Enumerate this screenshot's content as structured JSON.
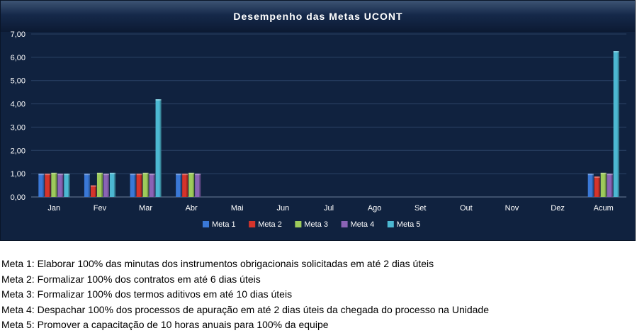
{
  "chart_data": {
    "type": "bar",
    "title": "Desempenho das Metas UCONT",
    "xlabel": "",
    "ylabel": "",
    "categories": [
      "Jan",
      "Fev",
      "Mar",
      "Abr",
      "Mai",
      "Jun",
      "Jul",
      "Ago",
      "Set",
      "Out",
      "Nov",
      "Dez",
      "Acum"
    ],
    "series": [
      {
        "name": "Meta 1",
        "color": "#3A78D6",
        "values": [
          1.0,
          1.0,
          1.0,
          1.0,
          null,
          null,
          null,
          null,
          null,
          null,
          null,
          null,
          1.0
        ]
      },
      {
        "name": "Meta 2",
        "color": "#D5342B",
        "values": [
          1.0,
          0.5,
          1.0,
          1.0,
          null,
          null,
          null,
          null,
          null,
          null,
          null,
          null,
          0.88
        ]
      },
      {
        "name": "Meta 3",
        "color": "#9DCB5B",
        "values": [
          1.04,
          1.04,
          1.04,
          1.04,
          null,
          null,
          null,
          null,
          null,
          null,
          null,
          null,
          1.04
        ]
      },
      {
        "name": "Meta 4",
        "color": "#8A63B5",
        "values": [
          1.0,
          1.0,
          1.0,
          1.0,
          null,
          null,
          null,
          null,
          null,
          null,
          null,
          null,
          1.0
        ]
      },
      {
        "name": "Meta 5",
        "color": "#4CB8D2",
        "values": [
          1.0,
          1.04,
          4.2,
          null,
          null,
          null,
          null,
          null,
          null,
          null,
          null,
          null,
          6.27
        ]
      }
    ],
    "ylim": [
      0,
      7
    ],
    "ytick_values": [
      0,
      1,
      2,
      3,
      4,
      5,
      6,
      7
    ],
    "ytick_labels": [
      "0,00",
      "1,00",
      "2,00",
      "3,00",
      "4,00",
      "5,00",
      "6,00",
      "7,00"
    ],
    "grid": true,
    "legend_position": "bottom",
    "background_color": "#10223F"
  },
  "notes": [
    "Meta 1: Elaborar 100% das minutas dos instrumentos obrigacionais solicitadas em até 2 dias úteis",
    "Meta 2:  Formalizar 100% dos contratos em até 6 dias úteis",
    "Meta 3: Formalizar 100% dos termos aditivos em até 10 dias úteis",
    "Meta 4: Despachar 100% dos processos de apuração em até 2 dias úteis da chegada do processo na Unidade",
    "Meta 5: Promover a capacitação de 10 horas anuais para 100% da equipe"
  ]
}
